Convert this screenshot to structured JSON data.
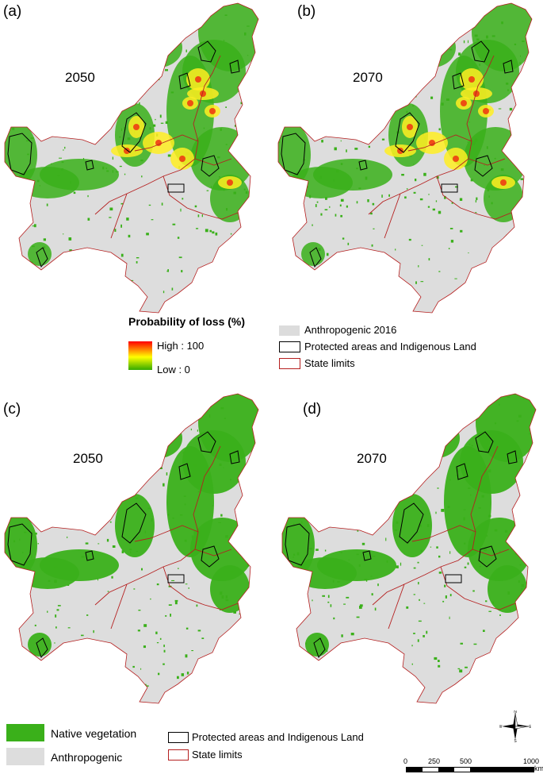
{
  "panels": [
    {
      "letter": "(a)",
      "year": "2050",
      "style": "probability"
    },
    {
      "letter": "(b)",
      "year": "2070",
      "style": "probability"
    },
    {
      "letter": "(c)",
      "year": "2050",
      "style": "vegetation"
    },
    {
      "letter": "(d)",
      "year": "2070",
      "style": "vegetation"
    }
  ],
  "legend_prob": {
    "title": "Probability of loss (%)",
    "high": "High : 100",
    "low": "Low : 0",
    "gradient_colors": [
      "#ff0000",
      "#ffff00",
      "#33aa00"
    ]
  },
  "legend_top_right": {
    "anthropogenic": "Anthropogenic 2016",
    "protected": "Protected areas and Indigenous Land",
    "state": "State limits"
  },
  "legend_bottom": {
    "native": "Native vegetation",
    "anthropogenic": "Anthropogenic",
    "protected": "Protected areas and Indigenous Land",
    "state": "State limits"
  },
  "colors": {
    "native_green": "#3ab01a",
    "anthropogenic_gray": "#dddddd",
    "state_red": "#b52020",
    "protected_black": "#000000"
  },
  "scale_bar": {
    "ticks": [
      "0",
      "250",
      "500",
      "1000"
    ],
    "unit": "km"
  },
  "north_arrow": {
    "n": "N",
    "s": "S",
    "e": "E",
    "w": "W"
  }
}
